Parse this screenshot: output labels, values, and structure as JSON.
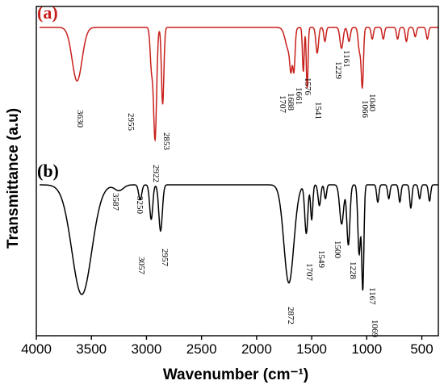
{
  "chart_data": {
    "type": "line",
    "xlabel": "Wavenumber (cm⁻¹)",
    "ylabel": "Transmittance (a.u)",
    "xlim": [
      4000,
      350
    ],
    "x_reversed": true,
    "xticks": [
      4000,
      3500,
      3000,
      2500,
      2000,
      1500,
      1000,
      500
    ],
    "xtick_labels": [
      "4000",
      "3500",
      "3000",
      "2500",
      "2000",
      "1500",
      "1000",
      "500"
    ],
    "grid": false,
    "series": [
      {
        "label": "(a)",
        "color": "#c8201c",
        "baseline": 1.0,
        "peaks": [
          {
            "x": 3630,
            "depth": 0.46,
            "width": 45
          },
          {
            "x": 2955,
            "depth": 0.33,
            "width": 12
          },
          {
            "x": 2922,
            "depth": 0.96,
            "width": 14
          },
          {
            "x": 2853,
            "depth": 0.66,
            "width": 11
          },
          {
            "x": 1707,
            "depth": 0.2,
            "width": 30
          },
          {
            "x": 1688,
            "depth": 0.22,
            "width": 10
          },
          {
            "x": 1661,
            "depth": 0.32,
            "width": 10
          },
          {
            "x": 1576,
            "depth": 0.38,
            "width": 8
          },
          {
            "x": 1541,
            "depth": 0.52,
            "width": 8
          },
          {
            "x": 1450,
            "depth": 0.22,
            "width": 12
          },
          {
            "x": 1380,
            "depth": 0.12,
            "width": 10
          },
          {
            "x": 1229,
            "depth": 0.18,
            "width": 14
          },
          {
            "x": 1161,
            "depth": 0.12,
            "width": 12
          },
          {
            "x": 1066,
            "depth": 0.2,
            "width": 12
          },
          {
            "x": 1040,
            "depth": 0.5,
            "width": 10
          },
          {
            "x": 950,
            "depth": 0.1,
            "width": 10
          },
          {
            "x": 850,
            "depth": 0.1,
            "width": 10
          },
          {
            "x": 720,
            "depth": 0.1,
            "width": 10
          },
          {
            "x": 640,
            "depth": 0.12,
            "width": 10
          },
          {
            "x": 560,
            "depth": 0.08,
            "width": 10
          },
          {
            "x": 450,
            "depth": 0.1,
            "width": 10
          }
        ],
        "peak_labels": [
          "3630",
          "2955",
          "2922",
          "2853",
          "1707",
          "1688",
          "1661",
          "1576",
          "1541",
          "1229",
          "1161",
          "1066",
          "1040"
        ]
      },
      {
        "label": "(b)",
        "color": "#000000",
        "baseline": 1.0,
        "peaks": [
          {
            "x": 3587,
            "depth": 0.95,
            "width": 90
          },
          {
            "x": 3250,
            "depth": 0.05,
            "width": 40
          },
          {
            "x": 3057,
            "depth": 0.13,
            "width": 14
          },
          {
            "x": 2957,
            "depth": 0.3,
            "width": 14
          },
          {
            "x": 2872,
            "depth": 0.4,
            "width": 16
          },
          {
            "x": 1707,
            "depth": 0.85,
            "width": 45
          },
          {
            "x": 1549,
            "depth": 0.42,
            "width": 14
          },
          {
            "x": 1500,
            "depth": 0.3,
            "width": 10
          },
          {
            "x": 1430,
            "depth": 0.18,
            "width": 12
          },
          {
            "x": 1375,
            "depth": 0.12,
            "width": 10
          },
          {
            "x": 1228,
            "depth": 0.34,
            "width": 18
          },
          {
            "x": 1167,
            "depth": 0.52,
            "width": 14
          },
          {
            "x": 1069,
            "depth": 0.6,
            "width": 12
          },
          {
            "x": 1036,
            "depth": 0.9,
            "width": 10
          },
          {
            "x": 900,
            "depth": 0.15,
            "width": 10
          },
          {
            "x": 800,
            "depth": 0.12,
            "width": 10
          },
          {
            "x": 700,
            "depth": 0.15,
            "width": 10
          },
          {
            "x": 600,
            "depth": 0.2,
            "width": 10
          },
          {
            "x": 520,
            "depth": 0.12,
            "width": 10
          },
          {
            "x": 430,
            "depth": 0.14,
            "width": 10
          }
        ],
        "peak_labels": [
          "3587",
          "3250",
          "3057",
          "2957",
          "2872",
          "1707",
          "1549",
          "1500",
          "1228",
          "1167",
          "1069",
          "1036"
        ]
      }
    ]
  }
}
